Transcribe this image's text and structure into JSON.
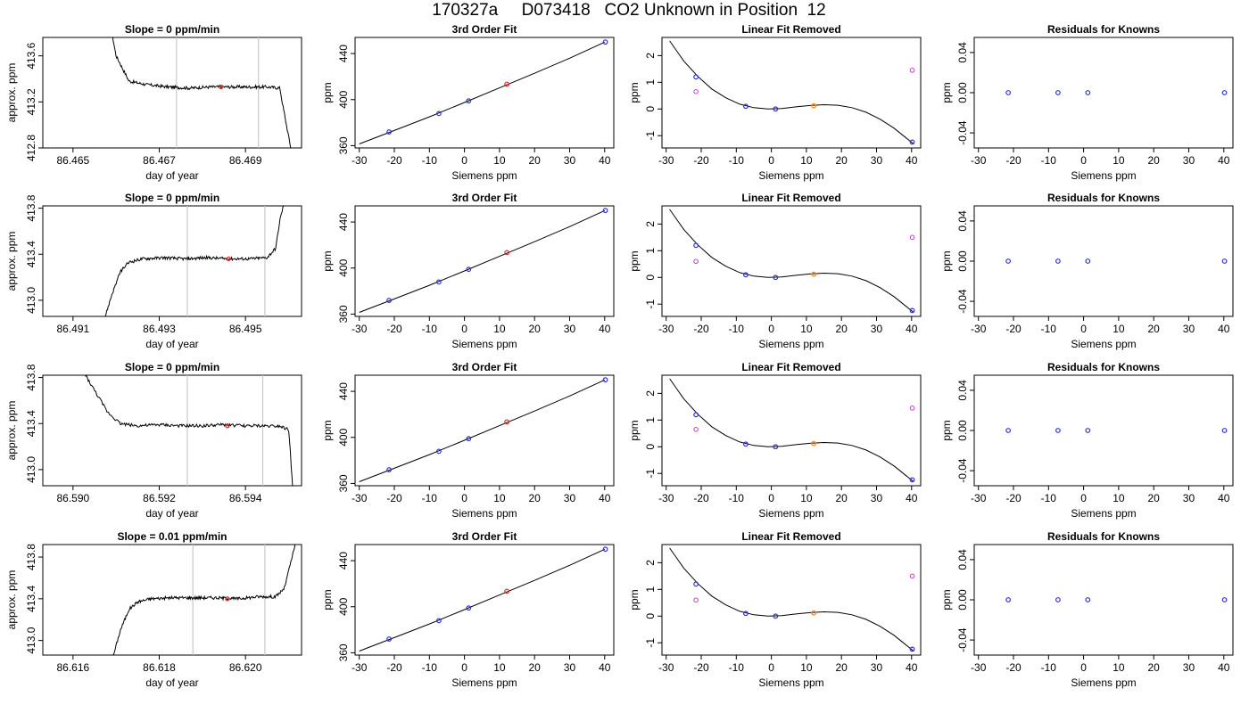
{
  "page": {
    "title": "170327a     D073418   CO2 Unknown in Position  12"
  },
  "chart_data": [
    {
      "type": "line",
      "panel": "time-series",
      "row": 1,
      "title": "Slope =  0  ppm/min",
      "xlabel": "day of year",
      "ylabel": "approx. ppm",
      "xlim": [
        86.4643,
        86.4703
      ],
      "ylim": [
        412.8,
        413.76
      ],
      "xticks": [
        86.465,
        86.467,
        86.469
      ],
      "xtick_labels": [
        "86.465",
        "86.467",
        "86.469"
      ],
      "yticks": [
        412.8,
        413.2,
        413.6
      ],
      "ytick_labels": [
        "412.8",
        "413.2",
        "413.6"
      ],
      "hvals": [
        413.32,
        413.33
      ],
      "series": [
        {
          "x": [
            86.46585,
            86.466,
            86.4663,
            86.4667,
            86.4672,
            86.4677,
            86.4682,
            86.4687,
            86.4692,
            86.4695,
            86.4698,
            86.46985,
            86.46995,
            86.4701
          ],
          "y": [
            413.9,
            413.6,
            413.38,
            413.35,
            413.33,
            413.32,
            413.33,
            413.33,
            413.33,
            413.33,
            413.32,
            413.2,
            413.0,
            412.7
          ]
        }
      ],
      "vlines": [
        86.4674,
        86.4693
      ],
      "marker": {
        "x": 86.46843,
        "y": 413.33
      }
    },
    {
      "type": "scatter",
      "panel": "fit",
      "row": 1,
      "title": "3rd Order Fit",
      "xlabel": "Siemens ppm",
      "ylabel": "ppm",
      "xlim": [
        -31.2,
        42.6
      ],
      "ylim": [
        358,
        454
      ],
      "xticks": [
        -30,
        -20,
        -10,
        0,
        10,
        20,
        30,
        40
      ],
      "yticks": [
        360,
        400,
        440
      ],
      "curve_x": [
        -30,
        -20,
        -10,
        0,
        10,
        20,
        30,
        40
      ],
      "curve_y": [
        361.5,
        373.2,
        385.0,
        397.5,
        410.2,
        422.9,
        436.0,
        449.9
      ],
      "knowns": [
        {
          "x": -21.5,
          "y": 371.9
        },
        {
          "x": -7.3,
          "y": 387.9
        },
        {
          "x": 1.2,
          "y": 398.9
        },
        {
          "x": 40.2,
          "y": 450.0
        }
      ],
      "unknown": {
        "x": 12.1,
        "y": 413.3
      }
    },
    {
      "type": "scatter",
      "panel": "linear-fit-removed",
      "row": 1,
      "title": "Linear Fit Removed",
      "xlabel": "Siemens ppm",
      "ylabel": "ppm",
      "xlim": [
        -31.2,
        42.6
      ],
      "ylim": [
        -1.46,
        2.68
      ],
      "xticks": [
        -30,
        -20,
        -10,
        0,
        10,
        20,
        30,
        40
      ],
      "yticks": [
        -1,
        0,
        1,
        2
      ],
      "curve_x": [
        -29,
        -25,
        -21,
        -17,
        -13,
        -9,
        -5,
        -1,
        3,
        7,
        11,
        15,
        19,
        23,
        27,
        31,
        35,
        40.5
      ],
      "curve_y": [
        2.55,
        1.8,
        1.22,
        0.75,
        0.42,
        0.18,
        0.05,
        0.0,
        0.02,
        0.08,
        0.13,
        0.16,
        0.14,
        0.05,
        -0.12,
        -0.38,
        -0.72,
        -1.3
      ],
      "knowns": [
        {
          "x": -21.5,
          "y": 1.2
        },
        {
          "x": -7.3,
          "y": 0.1
        },
        {
          "x": 1.2,
          "y": 0.0
        },
        {
          "x": 40.2,
          "y": -1.24
        }
      ],
      "unknown": {
        "x": 12.1,
        "y": 0.12
      },
      "linear_residuals": [
        {
          "x": -21.5,
          "y": 0.65
        },
        {
          "x": 40.2,
          "y": 1.45
        }
      ]
    },
    {
      "type": "scatter",
      "panel": "residuals",
      "row": 1,
      "title": "Residuals for Knowns",
      "xlabel": "Siemens ppm",
      "ylabel": "ppm",
      "xlim": [
        -31.2,
        42.6
      ],
      "ylim": [
        -0.055,
        0.055
      ],
      "xticks": [
        -30,
        -20,
        -10,
        0,
        10,
        20,
        30,
        40
      ],
      "yticks": [
        -0.04,
        0.0,
        0.04
      ],
      "ytick_labels": [
        "-0.04",
        "0.00",
        "0.04"
      ],
      "knowns": [
        {
          "x": -21.5,
          "y": 0
        },
        {
          "x": -7.3,
          "y": 0
        },
        {
          "x": 1.2,
          "y": 0
        },
        {
          "x": 40.2,
          "y": 0
        }
      ]
    },
    {
      "type": "line",
      "panel": "time-series",
      "row": 2,
      "title": "Slope =  0  ppm/min",
      "xlabel": "day of year",
      "ylabel": "approx. ppm",
      "xlim": [
        86.4903,
        86.4963
      ],
      "ylim": [
        412.86,
        413.82
      ],
      "xticks": [
        86.491,
        86.493,
        86.495
      ],
      "xtick_labels": [
        "86.491",
        "86.493",
        "86.495"
      ],
      "yticks": [
        413.0,
        413.4,
        413.8
      ],
      "ytick_labels": [
        "413.0",
        "413.4",
        "413.8"
      ],
      "hvals": [
        413.36,
        413.37
      ],
      "series": [
        {
          "x": [
            86.4917,
            86.4919,
            86.4921,
            86.4923,
            86.4926,
            86.4931,
            86.4936,
            86.4941,
            86.4946,
            86.4951,
            86.4955,
            86.4957,
            86.4958,
            86.496
          ],
          "y": [
            412.8,
            413.05,
            413.25,
            413.33,
            413.36,
            413.37,
            413.36,
            413.37,
            413.36,
            413.36,
            413.37,
            413.45,
            413.7,
            414.0
          ]
        }
      ],
      "vlines": [
        86.49365,
        86.49545
      ],
      "marker": {
        "x": 86.49461,
        "y": 413.36
      }
    },
    {
      "type": "scatter",
      "panel": "fit",
      "row": 2,
      "title": "3rd Order Fit",
      "xlabel": "Siemens ppm",
      "ylabel": "ppm",
      "xlim": [
        -31.2,
        42.6
      ],
      "ylim": [
        358,
        454
      ],
      "xticks": [
        -30,
        -20,
        -10,
        0,
        10,
        20,
        30,
        40
      ],
      "yticks": [
        360,
        400,
        440
      ],
      "curve_x": [
        -30,
        -20,
        -10,
        0,
        10,
        20,
        30,
        40
      ],
      "curve_y": [
        361.5,
        373.2,
        385.0,
        397.5,
        410.2,
        422.9,
        436.0,
        449.9
      ],
      "knowns": [
        {
          "x": -21.5,
          "y": 371.9
        },
        {
          "x": -7.3,
          "y": 387.9
        },
        {
          "x": 1.2,
          "y": 398.9
        },
        {
          "x": 40.2,
          "y": 450.0
        }
      ],
      "unknown": {
        "x": 12.1,
        "y": 413.4
      }
    },
    {
      "type": "scatter",
      "panel": "linear-fit-removed",
      "row": 2,
      "title": "Linear Fit Removed",
      "xlabel": "Siemens ppm",
      "ylabel": "ppm",
      "xlim": [
        -31.2,
        42.6
      ],
      "ylim": [
        -1.46,
        2.68
      ],
      "xticks": [
        -30,
        -20,
        -10,
        0,
        10,
        20,
        30,
        40
      ],
      "yticks": [
        -1,
        0,
        1,
        2
      ],
      "curve_x": [
        -29,
        -25,
        -21,
        -17,
        -13,
        -9,
        -5,
        -1,
        3,
        7,
        11,
        15,
        19,
        23,
        27,
        31,
        35,
        40.5
      ],
      "curve_y": [
        2.55,
        1.8,
        1.22,
        0.75,
        0.42,
        0.18,
        0.05,
        0.0,
        0.02,
        0.08,
        0.13,
        0.16,
        0.14,
        0.05,
        -0.12,
        -0.38,
        -0.72,
        -1.3
      ],
      "knowns": [
        {
          "x": -21.5,
          "y": 1.2
        },
        {
          "x": -7.3,
          "y": 0.1
        },
        {
          "x": 1.2,
          "y": 0.0
        },
        {
          "x": 40.2,
          "y": -1.24
        }
      ],
      "unknown": {
        "x": 12.1,
        "y": 0.12
      },
      "linear_residuals": [
        {
          "x": -21.5,
          "y": 0.6
        },
        {
          "x": 40.2,
          "y": 1.5
        }
      ]
    },
    {
      "type": "scatter",
      "panel": "residuals",
      "row": 2,
      "title": "Residuals for Knowns",
      "xlabel": "Siemens ppm",
      "ylabel": "ppm",
      "xlim": [
        -31.2,
        42.6
      ],
      "ylim": [
        -0.055,
        0.055
      ],
      "xticks": [
        -30,
        -20,
        -10,
        0,
        10,
        20,
        30,
        40
      ],
      "yticks": [
        -0.04,
        0.0,
        0.04
      ],
      "ytick_labels": [
        "-0.04",
        "0.00",
        "0.04"
      ],
      "knowns": [
        {
          "x": -21.5,
          "y": 0
        },
        {
          "x": -7.3,
          "y": 0
        },
        {
          "x": 1.2,
          "y": 0
        },
        {
          "x": 40.2,
          "y": 0
        }
      ]
    },
    {
      "type": "line",
      "panel": "time-series",
      "row": 3,
      "title": "Slope =  0  ppm/min",
      "xlabel": "day of year",
      "ylabel": "approx. ppm",
      "xlim": [
        86.5893,
        86.5953
      ],
      "ylim": [
        412.86,
        413.82
      ],
      "xticks": [
        86.59,
        86.592,
        86.594
      ],
      "xtick_labels": [
        "86.590",
        "86.592",
        "86.594"
      ],
      "yticks": [
        413.0,
        413.4,
        413.8
      ],
      "ytick_labels": [
        "413.0",
        "413.4",
        "413.8"
      ],
      "hvals": [
        413.38,
        413.39
      ],
      "series": [
        {
          "x": [
            86.59,
            86.5904,
            86.5908,
            86.5911,
            86.5915,
            86.592,
            86.5925,
            86.593,
            86.5935,
            86.594,
            86.5945,
            86.5948,
            86.595,
            86.59505,
            86.5951
          ],
          "y": [
            414.0,
            413.75,
            413.5,
            413.4,
            413.38,
            413.39,
            413.38,
            413.38,
            413.39,
            413.38,
            413.38,
            413.38,
            413.35,
            413.1,
            412.8
          ]
        }
      ],
      "vlines": [
        86.59265,
        86.5944
      ],
      "marker": {
        "x": 86.59358,
        "y": 413.38
      }
    },
    {
      "type": "scatter",
      "panel": "fit",
      "row": 3,
      "title": "3rd Order Fit",
      "xlabel": "Siemens ppm",
      "ylabel": "ppm",
      "xlim": [
        -31.2,
        42.6
      ],
      "ylim": [
        358,
        454
      ],
      "xticks": [
        -30,
        -20,
        -10,
        0,
        10,
        20,
        30,
        40
      ],
      "yticks": [
        360,
        400,
        440
      ],
      "curve_x": [
        -30,
        -20,
        -10,
        0,
        10,
        20,
        30,
        40
      ],
      "curve_y": [
        361.5,
        373.2,
        385.0,
        397.5,
        410.2,
        422.9,
        436.0,
        449.9
      ],
      "knowns": [
        {
          "x": -21.5,
          "y": 371.9
        },
        {
          "x": -7.3,
          "y": 387.9
        },
        {
          "x": 1.2,
          "y": 398.9
        },
        {
          "x": 40.2,
          "y": 450.0
        }
      ],
      "unknown": {
        "x": 12.1,
        "y": 413.4
      }
    },
    {
      "type": "scatter",
      "panel": "linear-fit-removed",
      "row": 3,
      "title": "Linear Fit Removed",
      "xlabel": "Siemens ppm",
      "ylabel": "ppm",
      "xlim": [
        -31.2,
        42.6
      ],
      "ylim": [
        -1.46,
        2.68
      ],
      "xticks": [
        -30,
        -20,
        -10,
        0,
        10,
        20,
        30,
        40
      ],
      "yticks": [
        -1,
        0,
        1,
        2
      ],
      "curve_x": [
        -29,
        -25,
        -21,
        -17,
        -13,
        -9,
        -5,
        -1,
        3,
        7,
        11,
        15,
        19,
        23,
        27,
        31,
        35,
        40.5
      ],
      "curve_y": [
        2.55,
        1.8,
        1.22,
        0.75,
        0.42,
        0.18,
        0.05,
        0.0,
        0.02,
        0.08,
        0.13,
        0.16,
        0.14,
        0.05,
        -0.12,
        -0.38,
        -0.72,
        -1.3
      ],
      "knowns": [
        {
          "x": -21.5,
          "y": 1.2
        },
        {
          "x": -7.3,
          "y": 0.1
        },
        {
          "x": 1.2,
          "y": 0.0
        },
        {
          "x": 40.2,
          "y": -1.24
        }
      ],
      "unknown": {
        "x": 12.1,
        "y": 0.12
      },
      "linear_residuals": [
        {
          "x": -21.5,
          "y": 0.65
        },
        {
          "x": 40.2,
          "y": 1.45
        }
      ]
    },
    {
      "type": "scatter",
      "panel": "residuals",
      "row": 3,
      "title": "Residuals for Knowns",
      "xlabel": "Siemens ppm",
      "ylabel": "ppm",
      "xlim": [
        -31.2,
        42.6
      ],
      "ylim": [
        -0.055,
        0.055
      ],
      "xticks": [
        -30,
        -20,
        -10,
        0,
        10,
        20,
        30,
        40
      ],
      "yticks": [
        -0.04,
        0.0,
        0.04
      ],
      "ytick_labels": [
        "-0.04",
        "0.00",
        "0.04"
      ],
      "knowns": [
        {
          "x": -21.5,
          "y": 0
        },
        {
          "x": -7.3,
          "y": 0
        },
        {
          "x": 1.2,
          "y": 0
        },
        {
          "x": 40.2,
          "y": 0
        }
      ]
    },
    {
      "type": "line",
      "panel": "time-series",
      "row": 4,
      "title": "Slope =  0.01  ppm/min",
      "xlabel": "day of year",
      "ylabel": "approx. ppm",
      "xlim": [
        86.6153,
        86.6213
      ],
      "ylim": [
        412.86,
        413.92
      ],
      "xticks": [
        86.616,
        86.618,
        86.62
      ],
      "xtick_labels": [
        "86.616",
        "86.618",
        "86.620"
      ],
      "yticks": [
        413.0,
        413.4,
        413.8
      ],
      "ytick_labels": [
        "413.0",
        "413.4",
        "413.8"
      ],
      "hvals": [
        413.4,
        413.41
      ],
      "series": [
        {
          "x": [
            86.6169,
            86.6171,
            86.6173,
            86.6175,
            86.6178,
            86.6183,
            86.6188,
            86.6193,
            86.6198,
            86.6203,
            86.6207,
            86.6209,
            86.62105,
            86.6212
          ],
          "y": [
            412.8,
            413.1,
            413.3,
            413.37,
            413.4,
            413.41,
            413.41,
            413.41,
            413.4,
            413.42,
            413.42,
            413.5,
            413.75,
            414.0
          ]
        }
      ],
      "vlines": [
        86.61878,
        86.62045
      ],
      "marker": {
        "x": 86.61958,
        "y": 413.4
      }
    },
    {
      "type": "scatter",
      "panel": "fit",
      "row": 4,
      "title": "3rd Order Fit",
      "xlabel": "Siemens ppm",
      "ylabel": "ppm",
      "xlim": [
        -31.2,
        42.6
      ],
      "ylim": [
        358,
        454
      ],
      "xticks": [
        -30,
        -20,
        -10,
        0,
        10,
        20,
        30,
        40
      ],
      "yticks": [
        360,
        400,
        440
      ],
      "curve_x": [
        -30,
        -20,
        -10,
        0,
        10,
        20,
        30,
        40
      ],
      "curve_y": [
        361.5,
        373.2,
        385.0,
        397.5,
        410.2,
        422.9,
        436.0,
        449.9
      ],
      "knowns": [
        {
          "x": -21.5,
          "y": 371.9
        },
        {
          "x": -7.3,
          "y": 387.9
        },
        {
          "x": 1.2,
          "y": 398.9
        },
        {
          "x": 40.2,
          "y": 450.0
        }
      ],
      "unknown": {
        "x": 12.1,
        "y": 413.4
      }
    },
    {
      "type": "scatter",
      "panel": "linear-fit-removed",
      "row": 4,
      "title": "Linear Fit Removed",
      "xlabel": "Siemens ppm",
      "ylabel": "ppm",
      "xlim": [
        -31.2,
        42.6
      ],
      "ylim": [
        -1.46,
        2.68
      ],
      "xticks": [
        -30,
        -20,
        -10,
        0,
        10,
        20,
        30,
        40
      ],
      "yticks": [
        -1,
        0,
        1,
        2
      ],
      "curve_x": [
        -29,
        -25,
        -21,
        -17,
        -13,
        -9,
        -5,
        -1,
        3,
        7,
        11,
        15,
        19,
        23,
        27,
        31,
        35,
        40.5
      ],
      "curve_y": [
        2.55,
        1.8,
        1.22,
        0.75,
        0.42,
        0.18,
        0.05,
        0.0,
        0.02,
        0.08,
        0.13,
        0.16,
        0.14,
        0.05,
        -0.12,
        -0.38,
        -0.72,
        -1.3
      ],
      "knowns": [
        {
          "x": -21.5,
          "y": 1.2
        },
        {
          "x": -7.3,
          "y": 0.1
        },
        {
          "x": 1.2,
          "y": 0.0
        },
        {
          "x": 40.2,
          "y": -1.24
        }
      ],
      "unknown": {
        "x": 12.1,
        "y": 0.12
      },
      "linear_residuals": [
        {
          "x": -21.5,
          "y": 0.6
        },
        {
          "x": 40.2,
          "y": 1.5
        }
      ]
    },
    {
      "type": "scatter",
      "panel": "residuals",
      "row": 4,
      "title": "Residuals for Knowns",
      "xlabel": "Siemens ppm",
      "ylabel": "ppm",
      "xlim": [
        -31.2,
        42.6
      ],
      "ylim": [
        -0.055,
        0.055
      ],
      "xticks": [
        -30,
        -20,
        -10,
        0,
        10,
        20,
        30,
        40
      ],
      "yticks": [
        -0.04,
        0.0,
        0.04
      ],
      "ytick_labels": [
        "-0.04",
        "0.00",
        "0.04"
      ],
      "knowns": [
        {
          "x": -21.5,
          "y": 0
        },
        {
          "x": -7.3,
          "y": 0
        },
        {
          "x": 1.2,
          "y": 0
        },
        {
          "x": 40.2,
          "y": 0
        }
      ]
    }
  ],
  "colors": {
    "known_marker": "#3030d0",
    "unknown_marker": "#e03030",
    "unknown_marker_fit_removed": "#ff8a1a",
    "linear_residual_marker": "#c040c8",
    "vline": "#c8c8c8",
    "axis": "#000000"
  }
}
